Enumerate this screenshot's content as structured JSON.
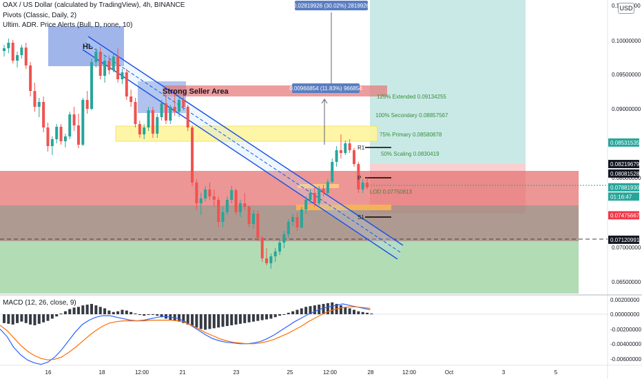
{
  "header": {
    "title": "OAX / US Dollar (calculated by TradingView), 4h, BINANCE",
    "indicator1": "Pivots (Classic, Daily, 2)",
    "indicator2": "Ultim. ADR. Price Alerts (Bull, D, none, 10)",
    "currency_button": "USD"
  },
  "macd": {
    "title": "MACD (12, 26, close, 9)"
  },
  "colors": {
    "bull": "#26a69a",
    "bear": "#ef5350",
    "macd_line": "#2962ff",
    "signal_line": "#ff6d00",
    "zone_red": "#e57373",
    "zone_brown": "#a1887f",
    "zone_green": "#a5d6a7",
    "zone_teal": "#b2dfdb",
    "zone_blue": "#8fa8e6",
    "zone_yellow": "#fff59d"
  },
  "chart_data": {
    "type": "candlestick",
    "price_axis_ticks": [
      "0.11000000",
      "0.10000000",
      "0.09500000",
      "0.09000000",
      "0.08000000",
      "0.07000000",
      "0.06500000"
    ],
    "price_tags": [
      {
        "value": "0.08531535",
        "price": 0.085315,
        "color": "#26a69a"
      },
      {
        "value": "0.08219679",
        "price": 0.082197,
        "color": "#131722"
      },
      {
        "value": "0.08081528",
        "price": 0.080815,
        "color": "#131722"
      },
      {
        "value": "0.07881930",
        "price": 0.078819,
        "color": "#26a69a"
      },
      {
        "value": "01:16:47",
        "price": 0.077475,
        "color": "#26a69a"
      },
      {
        "value": "0.07475667",
        "price": 0.074757,
        "color": "#f23645"
      },
      {
        "value": "0.07120991",
        "price": 0.07121,
        "color": "#131722"
      }
    ],
    "x_ticks": [
      "16",
      "18",
      "12:00",
      "21",
      "23",
      "25",
      "12:00",
      "28",
      "12:00",
      "Oct",
      "3",
      "5"
    ],
    "annotations": {
      "hl": "HL",
      "strong_seller_area": "Strong Seller Area",
      "measure_top": "0.02819926 (30.02%) 2819926",
      "measure_mid": "0.00966854 (11.83%) 966854",
      "ext_125": "125% Extended 0.09134255",
      "secondary_100": "100% Secondary 0.08857567",
      "primary_75": "75% Primary 0.08580878",
      "scaling_50": "50% Scaling 0.0830419",
      "lod": "LOD 0.07750813",
      "r1": "R1",
      "p": "P",
      "s1": "S1"
    },
    "macd_axis_ticks": [
      "0.00200000",
      "0.00000000",
      "-0.00200000",
      "-0.00400000",
      "-0.00600000"
    ],
    "candles": [
      [
        0.0986,
        0.0995,
        0.0978,
        0.099
      ],
      [
        0.099,
        0.1004,
        0.0983,
        0.0998
      ],
      [
        0.0998,
        0.1002,
        0.0968,
        0.0972
      ],
      [
        0.0972,
        0.0985,
        0.0962,
        0.098
      ],
      [
        0.098,
        0.0995,
        0.0975,
        0.0991
      ],
      [
        0.0991,
        0.0998,
        0.096,
        0.0965
      ],
      [
        0.0965,
        0.097,
        0.092,
        0.0928
      ],
      [
        0.0928,
        0.094,
        0.0898,
        0.0905
      ],
      [
        0.0905,
        0.0918,
        0.089,
        0.0912
      ],
      [
        0.0912,
        0.092,
        0.0868,
        0.0875
      ],
      [
        0.0875,
        0.0882,
        0.084,
        0.0848
      ],
      [
        0.0848,
        0.0862,
        0.0835,
        0.0858
      ],
      [
        0.0858,
        0.088,
        0.0852,
        0.0876
      ],
      [
        0.0876,
        0.088,
        0.085,
        0.0855
      ],
      [
        0.0855,
        0.0866,
        0.0846,
        0.0862
      ],
      [
        0.0862,
        0.0898,
        0.0858,
        0.0894
      ],
      [
        0.0894,
        0.0905,
        0.087,
        0.0878
      ],
      [
        0.0878,
        0.0895,
        0.0845,
        0.085
      ],
      [
        0.085,
        0.0918,
        0.0848,
        0.0915
      ],
      [
        0.0915,
        0.0928,
        0.0895,
        0.0902
      ],
      [
        0.0902,
        0.0975,
        0.09,
        0.097
      ],
      [
        0.097,
        0.099,
        0.0962,
        0.0985
      ],
      [
        0.0985,
        0.0992,
        0.0945,
        0.095
      ],
      [
        0.095,
        0.0978,
        0.094,
        0.0972
      ],
      [
        0.0972,
        0.098,
        0.0952,
        0.0958
      ],
      [
        0.0958,
        0.0984,
        0.0955,
        0.0978
      ],
      [
        0.0978,
        0.099,
        0.094,
        0.0945
      ],
      [
        0.0945,
        0.096,
        0.0938,
        0.0955
      ],
      [
        0.0955,
        0.096,
        0.0915,
        0.092
      ],
      [
        0.092,
        0.093,
        0.0905,
        0.0912
      ],
      [
        0.0912,
        0.0918,
        0.0875,
        0.088
      ],
      [
        0.088,
        0.0885,
        0.086,
        0.0865
      ],
      [
        0.0865,
        0.088,
        0.0858,
        0.0875
      ],
      [
        0.0875,
        0.0905,
        0.087,
        0.09
      ],
      [
        0.09,
        0.0905,
        0.086,
        0.0866
      ],
      [
        0.0866,
        0.0895,
        0.086,
        0.089
      ],
      [
        0.089,
        0.0915,
        0.0885,
        0.091
      ],
      [
        0.091,
        0.092,
        0.088,
        0.0885
      ],
      [
        0.0885,
        0.0908,
        0.088,
        0.0905
      ],
      [
        0.0905,
        0.093,
        0.0892,
        0.0898
      ],
      [
        0.0898,
        0.092,
        0.089,
        0.0915
      ],
      [
        0.0915,
        0.092,
        0.09,
        0.0905
      ],
      [
        0.0905,
        0.0908,
        0.087,
        0.0875
      ],
      [
        0.0875,
        0.0878,
        0.079,
        0.0795
      ],
      [
        0.0795,
        0.08,
        0.0755,
        0.0765
      ],
      [
        0.0765,
        0.078,
        0.0748,
        0.0772
      ],
      [
        0.0772,
        0.079,
        0.0768,
        0.0785
      ],
      [
        0.0785,
        0.0795,
        0.077,
        0.0775
      ],
      [
        0.0775,
        0.0785,
        0.076,
        0.077
      ],
      [
        0.077,
        0.0775,
        0.073,
        0.0738
      ],
      [
        0.0738,
        0.076,
        0.073,
        0.0752
      ],
      [
        0.0752,
        0.0775,
        0.0748,
        0.077
      ],
      [
        0.077,
        0.079,
        0.0765,
        0.0784
      ],
      [
        0.0784,
        0.0786,
        0.0748,
        0.0752
      ],
      [
        0.0752,
        0.077,
        0.0745,
        0.0765
      ],
      [
        0.0765,
        0.078,
        0.0755,
        0.076
      ],
      [
        0.076,
        0.0762,
        0.073,
        0.0735
      ],
      [
        0.0735,
        0.0755,
        0.0728,
        0.075
      ],
      [
        0.075,
        0.0755,
        0.071,
        0.0715
      ],
      [
        0.0715,
        0.0718,
        0.068,
        0.0685
      ],
      [
        0.0685,
        0.07,
        0.0675,
        0.0678
      ],
      [
        0.0678,
        0.0692,
        0.067,
        0.0688
      ],
      [
        0.0688,
        0.07,
        0.068,
        0.0695
      ],
      [
        0.0695,
        0.0712,
        0.069,
        0.0708
      ],
      [
        0.0708,
        0.0725,
        0.07,
        0.072
      ],
      [
        0.072,
        0.0742,
        0.0715,
        0.0738
      ],
      [
        0.0738,
        0.075,
        0.0732,
        0.0745
      ],
      [
        0.0745,
        0.0752,
        0.0725,
        0.073
      ],
      [
        0.073,
        0.076,
        0.0728,
        0.0756
      ],
      [
        0.0756,
        0.0775,
        0.075,
        0.077
      ],
      [
        0.077,
        0.0785,
        0.0765,
        0.078
      ],
      [
        0.078,
        0.0788,
        0.076,
        0.0765
      ],
      [
        0.0765,
        0.079,
        0.0762,
        0.0786
      ],
      [
        0.0786,
        0.0792,
        0.0775,
        0.078
      ],
      [
        0.078,
        0.08,
        0.0778,
        0.0796
      ],
      [
        0.0796,
        0.083,
        0.0794,
        0.0825
      ],
      [
        0.0825,
        0.0848,
        0.0818,
        0.0842
      ],
      [
        0.0842,
        0.0865,
        0.083,
        0.0838
      ],
      [
        0.0838,
        0.0856,
        0.0835,
        0.0852
      ],
      [
        0.0852,
        0.0858,
        0.0838,
        0.0842
      ],
      [
        0.0842,
        0.0845,
        0.0818,
        0.0822
      ],
      [
        0.0822,
        0.0825,
        0.078,
        0.0785
      ],
      [
        0.0785,
        0.08,
        0.078,
        0.0795
      ],
      [
        0.0795,
        0.0802,
        0.0785,
        0.0788
      ]
    ],
    "macd_histogram": [
      -0.0012,
      -0.0013,
      -0.0014,
      -0.0012,
      -0.001,
      -0.0012,
      -0.0014,
      -0.0015,
      -0.0013,
      -0.0011,
      -0.0009,
      -0.0006,
      -0.0003,
      0.0001,
      0.0004,
      0.0007,
      0.0009,
      0.001,
      0.0012,
      0.0013,
      0.0014,
      0.0012,
      0.001,
      0.0008,
      0.0005,
      0.0003,
      0.0004,
      0.0006,
      0.0005,
      0.0003,
      0.0001,
      -0.0001,
      -0.0002,
      -0.0001,
      0.0,
      -0.0002,
      -0.0004,
      -0.0006,
      -0.0008,
      -0.0009,
      -0.001,
      -0.0012,
      -0.0014,
      -0.0016,
      -0.0018,
      -0.002,
      -0.0021,
      -0.002,
      -0.0019,
      -0.0018,
      -0.0017,
      -0.0016,
      -0.0015,
      -0.0014,
      -0.0013,
      -0.0012,
      -0.0011,
      -0.001,
      -0.0009,
      -0.0008,
      -0.0007,
      -0.0006,
      -0.0004,
      -0.0002,
      0.0,
      0.0002,
      0.0004,
      0.0006,
      0.0008,
      0.001,
      0.0011,
      0.0012,
      0.0013,
      0.0014,
      0.0015,
      0.0016,
      0.0014,
      0.0012,
      0.001,
      0.0008,
      0.0006,
      0.0004,
      0.0003,
      0.0002,
      0.0001
    ],
    "macd_line": [
      -0.002,
      -0.003,
      -0.0045,
      -0.0055,
      -0.0062,
      -0.0066,
      -0.0068,
      -0.0065,
      -0.0058,
      -0.0048,
      -0.0036,
      -0.0024,
      -0.0014,
      -0.0008,
      -0.0004,
      -0.0002,
      -0.0002,
      -0.0004,
      -0.0006,
      -0.0008,
      -0.0009,
      -0.0008,
      -0.0006,
      -0.0004,
      -0.0003,
      -0.0004,
      -0.0006,
      -0.001,
      -0.0016,
      -0.0022,
      -0.0028,
      -0.0033,
      -0.0036,
      -0.0038,
      -0.0039,
      -0.004,
      -0.004,
      -0.0039,
      -0.0037,
      -0.0033,
      -0.0028,
      -0.0022,
      -0.0016,
      -0.001,
      -0.0005,
      0.0,
      0.0004,
      0.0008,
      0.001,
      0.0012,
      0.0014,
      0.0012,
      0.001,
      0.0008,
      0.0006
    ],
    "signal_line": [
      -0.0015,
      -0.0022,
      -0.0032,
      -0.0042,
      -0.005,
      -0.0056,
      -0.006,
      -0.0062,
      -0.0061,
      -0.0058,
      -0.0052,
      -0.0045,
      -0.0037,
      -0.0029,
      -0.0022,
      -0.0016,
      -0.0012,
      -0.001,
      -0.0009,
      -0.0009,
      -0.0009,
      -0.0009,
      -0.0008,
      -0.0008,
      -0.0008,
      -0.0008,
      -0.0009,
      -0.0011,
      -0.0015,
      -0.002,
      -0.0025,
      -0.0029,
      -0.0033,
      -0.0036,
      -0.0038,
      -0.0039,
      -0.004,
      -0.004,
      -0.0039,
      -0.0037,
      -0.0034,
      -0.003,
      -0.0026,
      -0.0021,
      -0.0016,
      -0.001,
      -0.0005,
      0.0,
      0.0004,
      0.0007,
      0.0009,
      0.001,
      0.001,
      0.0009,
      0.0008
    ]
  }
}
